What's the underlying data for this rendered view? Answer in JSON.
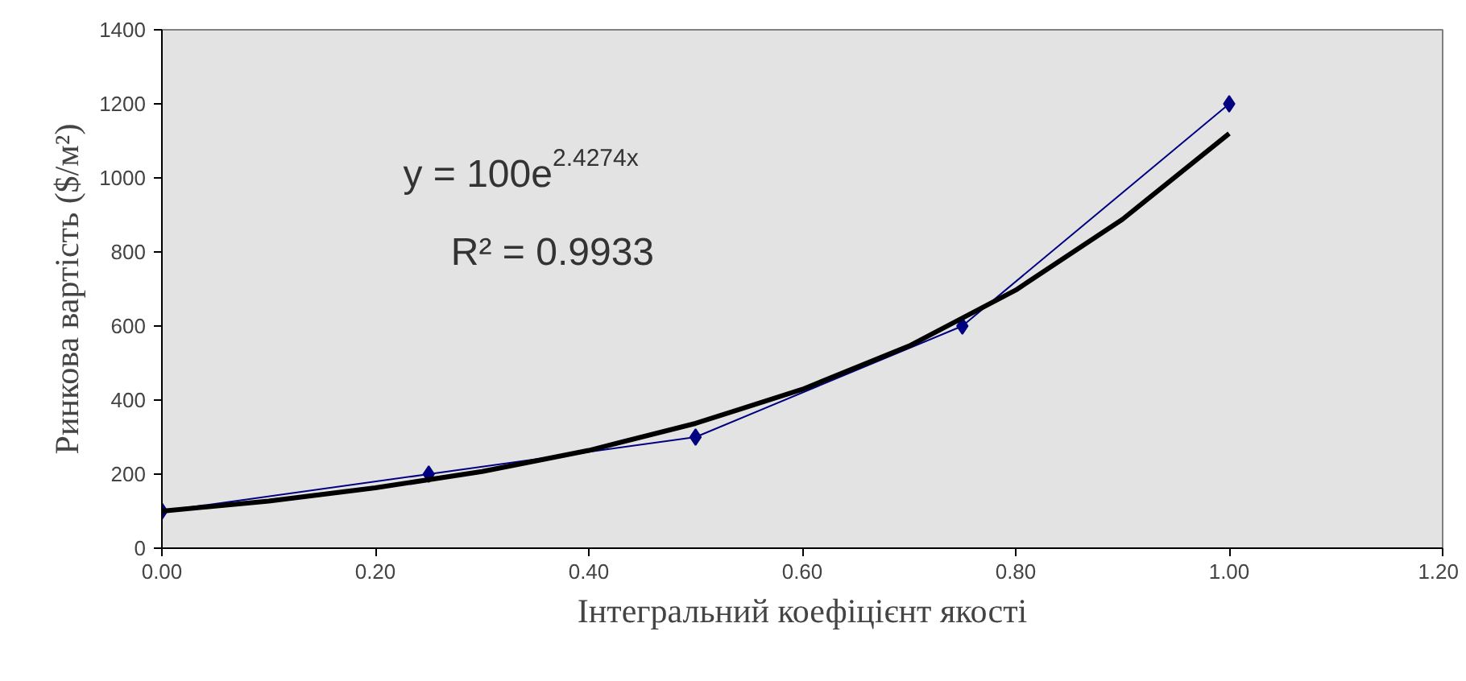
{
  "chart_data": {
    "type": "line",
    "xlabel": "Інтегральний коефіцієнт якості",
    "ylabel": "Ринкова вартість ($/м²)",
    "annotations": [
      "y = 100e$^{2.4274x}$",
      "R² = 0.9933"
    ],
    "xlim": [
      0,
      1.2
    ],
    "ylim": [
      0,
      1400
    ],
    "xticks": [
      {
        "value": 0,
        "label": "0.00"
      },
      {
        "value": 0.2,
        "label": "0.20"
      },
      {
        "value": 0.4,
        "label": "0.40"
      },
      {
        "value": 0.6,
        "label": "0.60"
      },
      {
        "value": 0.8,
        "label": "0.80"
      },
      {
        "value": 1.0,
        "label": "1.00"
      },
      {
        "value": 1.2,
        "label": "1.20"
      }
    ],
    "yticks": [
      0,
      200,
      400,
      600,
      800,
      1000,
      1200,
      1400
    ],
    "grid": false,
    "series": [
      {
        "marker": "diamond",
        "color": "#000080",
        "x": [
          0,
          0.25,
          0.5,
          0.75,
          1.0
        ],
        "values": [
          100,
          200,
          300,
          600,
          1200
        ]
      },
      {
        "marker": "none",
        "color": "#000000",
        "x": [
          0,
          0.1,
          0.2,
          0.3,
          0.4,
          0.5,
          0.6,
          0.7,
          0.8,
          0.9,
          1.0
        ],
        "values": [
          100,
          127,
          163,
          207,
          264,
          337,
          429,
          546,
          697,
          888,
          1120
        ]
      }
    ]
  }
}
